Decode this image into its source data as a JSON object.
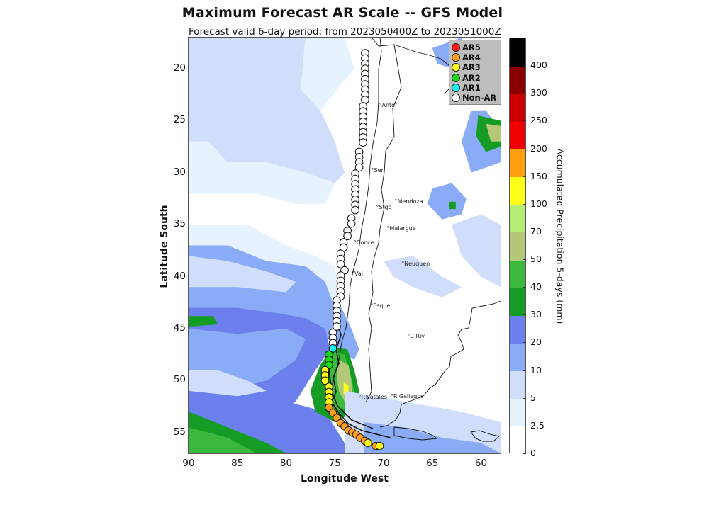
{
  "header": {
    "title": "Maximum Forecast AR Scale -- GFS Model",
    "subtitle": "Forecast valid 6-day period: from 2023050400Z to 2023051000Z"
  },
  "axes": {
    "xlabel": "Longitude West",
    "ylabel": "Latitude South",
    "xticks": [
      "90",
      "85",
      "80",
      "75",
      "70",
      "65",
      "60"
    ],
    "yticks": [
      "20",
      "25",
      "30",
      "35",
      "40",
      "45",
      "50",
      "55"
    ],
    "lon_range": [
      90,
      58
    ],
    "lat_range": [
      17,
      57
    ]
  },
  "legend": {
    "items": [
      {
        "label": "AR5",
        "color": "#ff1a1a"
      },
      {
        "label": "AR4",
        "color": "#ff9f1a"
      },
      {
        "label": "AR3",
        "color": "#ffff1a"
      },
      {
        "label": "AR2",
        "color": "#1ada1a"
      },
      {
        "label": "AR1",
        "color": "#1af2f2"
      },
      {
        "label": "Non-AR",
        "color": "#ffffff"
      }
    ]
  },
  "colorbar": {
    "label": "Accumulated Precipitation 5-days (mm)",
    "ticks": [
      "0",
      "2.5",
      "5",
      "10",
      "20",
      "30",
      "40",
      "50",
      "70",
      "100",
      "150",
      "200",
      "250",
      "300",
      "400"
    ],
    "colors": [
      "#ffffff",
      "#e6f2fd",
      "#d0ddfb",
      "#8aabf5",
      "#6b80ec",
      "#149c25",
      "#3cb83c",
      "#b4c878",
      "#b4ee78",
      "#ffff1a",
      "#ffa010",
      "#ee0000",
      "#cc0000",
      "#880000",
      "#000000"
    ]
  },
  "cities": [
    {
      "name": "Antof",
      "lon": 70.4,
      "lat": 23.6
    },
    {
      "name": "Ser.",
      "lon": 71.2,
      "lat": 29.9
    },
    {
      "name": "Stgo",
      "lon": 70.7,
      "lat": 33.4
    },
    {
      "name": "Mendoza",
      "lon": 68.8,
      "lat": 32.9
    },
    {
      "name": "Malargue",
      "lon": 69.6,
      "lat": 35.5
    },
    {
      "name": "Conce",
      "lon": 73.0,
      "lat": 36.8
    },
    {
      "name": "Neuquen",
      "lon": 68.1,
      "lat": 38.9
    },
    {
      "name": "Val",
      "lon": 73.2,
      "lat": 39.8
    },
    {
      "name": "Esquel",
      "lon": 71.3,
      "lat": 42.9
    },
    {
      "name": "C.Riv.",
      "lon": 67.5,
      "lat": 45.8
    },
    {
      "name": "P.Natales",
      "lon": 72.5,
      "lat": 51.7
    },
    {
      "name": "R.Gallegos",
      "lon": 69.2,
      "lat": 51.6
    }
  ],
  "ar_points": [
    {
      "lon": 71.9,
      "lat": 18.5,
      "ar": 0
    },
    {
      "lon": 71.9,
      "lat": 19.0,
      "ar": 0
    },
    {
      "lon": 71.9,
      "lat": 19.5,
      "ar": 0
    },
    {
      "lon": 71.9,
      "lat": 20.0,
      "ar": 0
    },
    {
      "lon": 71.9,
      "lat": 20.5,
      "ar": 0
    },
    {
      "lon": 71.9,
      "lat": 21.0,
      "ar": 0
    },
    {
      "lon": 71.9,
      "lat": 21.5,
      "ar": 0
    },
    {
      "lon": 71.9,
      "lat": 22.0,
      "ar": 0
    },
    {
      "lon": 71.9,
      "lat": 22.5,
      "ar": 0
    },
    {
      "lon": 71.9,
      "lat": 23.0,
      "ar": 0
    },
    {
      "lon": 72.1,
      "lat": 23.6,
      "ar": 0
    },
    {
      "lon": 72.1,
      "lat": 24.1,
      "ar": 0
    },
    {
      "lon": 72.1,
      "lat": 24.6,
      "ar": 0
    },
    {
      "lon": 72.1,
      "lat": 25.1,
      "ar": 0
    },
    {
      "lon": 72.1,
      "lat": 25.6,
      "ar": 0
    },
    {
      "lon": 72.1,
      "lat": 26.1,
      "ar": 0
    },
    {
      "lon": 72.1,
      "lat": 26.6,
      "ar": 0
    },
    {
      "lon": 72.1,
      "lat": 27.1,
      "ar": 0
    },
    {
      "lon": 72.5,
      "lat": 28.0,
      "ar": 0
    },
    {
      "lon": 72.5,
      "lat": 28.5,
      "ar": 0
    },
    {
      "lon": 72.5,
      "lat": 29.0,
      "ar": 0
    },
    {
      "lon": 72.5,
      "lat": 29.5,
      "ar": 0
    },
    {
      "lon": 72.9,
      "lat": 30.1,
      "ar": 0
    },
    {
      "lon": 72.9,
      "lat": 30.6,
      "ar": 0
    },
    {
      "lon": 72.9,
      "lat": 31.1,
      "ar": 0
    },
    {
      "lon": 72.9,
      "lat": 31.6,
      "ar": 0
    },
    {
      "lon": 72.9,
      "lat": 32.1,
      "ar": 0
    },
    {
      "lon": 72.9,
      "lat": 32.6,
      "ar": 0
    },
    {
      "lon": 72.9,
      "lat": 33.1,
      "ar": 0
    },
    {
      "lon": 72.9,
      "lat": 33.6,
      "ar": 0
    },
    {
      "lon": 73.3,
      "lat": 34.4,
      "ar": 0
    },
    {
      "lon": 73.3,
      "lat": 34.9,
      "ar": 0
    },
    {
      "lon": 73.7,
      "lat": 35.6,
      "ar": 0
    },
    {
      "lon": 73.7,
      "lat": 36.1,
      "ar": 0
    },
    {
      "lon": 74.1,
      "lat": 36.7,
      "ar": 0
    },
    {
      "lon": 74.1,
      "lat": 37.2,
      "ar": 0
    },
    {
      "lon": 74.4,
      "lat": 37.8,
      "ar": 0
    },
    {
      "lon": 74.4,
      "lat": 38.3,
      "ar": 0
    },
    {
      "lon": 74.4,
      "lat": 38.8,
      "ar": 0
    },
    {
      "lon": 74.0,
      "lat": 39.4,
      "ar": 0
    },
    {
      "lon": 74.4,
      "lat": 39.9,
      "ar": 0
    },
    {
      "lon": 74.4,
      "lat": 40.4,
      "ar": 0
    },
    {
      "lon": 74.4,
      "lat": 40.9,
      "ar": 0
    },
    {
      "lon": 74.4,
      "lat": 41.4,
      "ar": 0
    },
    {
      "lon": 74.4,
      "lat": 41.9,
      "ar": 0
    },
    {
      "lon": 74.8,
      "lat": 42.3,
      "ar": 0
    },
    {
      "lon": 74.8,
      "lat": 42.8,
      "ar": 0
    },
    {
      "lon": 74.8,
      "lat": 43.3,
      "ar": 0
    },
    {
      "lon": 74.8,
      "lat": 43.8,
      "ar": 0
    },
    {
      "lon": 74.8,
      "lat": 44.3,
      "ar": 0
    },
    {
      "lon": 74.8,
      "lat": 44.8,
      "ar": 0
    },
    {
      "lon": 75.2,
      "lat": 45.4,
      "ar": 0
    },
    {
      "lon": 75.2,
      "lat": 45.9,
      "ar": 0
    },
    {
      "lon": 75.2,
      "lat": 46.4,
      "ar": 0
    },
    {
      "lon": 75.2,
      "lat": 46.9,
      "ar": 1
    },
    {
      "lon": 75.6,
      "lat": 47.5,
      "ar": 2
    },
    {
      "lon": 75.6,
      "lat": 48.0,
      "ar": 2
    },
    {
      "lon": 75.6,
      "lat": 48.5,
      "ar": 2
    },
    {
      "lon": 76.0,
      "lat": 49.0,
      "ar": 3
    },
    {
      "lon": 76.0,
      "lat": 49.5,
      "ar": 3
    },
    {
      "lon": 76.0,
      "lat": 50.0,
      "ar": 3
    },
    {
      "lon": 75.6,
      "lat": 50.6,
      "ar": 3
    },
    {
      "lon": 75.6,
      "lat": 51.1,
      "ar": 3
    },
    {
      "lon": 75.6,
      "lat": 51.6,
      "ar": 3
    },
    {
      "lon": 75.6,
      "lat": 52.1,
      "ar": 3
    },
    {
      "lon": 75.6,
      "lat": 52.6,
      "ar": 4
    },
    {
      "lon": 75.2,
      "lat": 53.1,
      "ar": 4
    },
    {
      "lon": 74.8,
      "lat": 53.6,
      "ar": 4
    },
    {
      "lon": 74.4,
      "lat": 54.1,
      "ar": 4
    },
    {
      "lon": 74.0,
      "lat": 54.4,
      "ar": 4
    },
    {
      "lon": 73.6,
      "lat": 54.8,
      "ar": 4
    },
    {
      "lon": 73.2,
      "lat": 55.0,
      "ar": 4
    },
    {
      "lon": 72.8,
      "lat": 55.2,
      "ar": 4
    },
    {
      "lon": 72.4,
      "lat": 55.5,
      "ar": 4
    },
    {
      "lon": 71.9,
      "lat": 55.8,
      "ar": 4
    },
    {
      "lon": 71.6,
      "lat": 56.0,
      "ar": 3
    },
    {
      "lon": 70.8,
      "lat": 56.3,
      "ar": 4
    },
    {
      "lon": 70.4,
      "lat": 56.3,
      "ar": 3
    }
  ],
  "precip_regions": [
    {
      "level": 2,
      "points": [
        [
          90,
          17
        ],
        [
          78,
          17
        ],
        [
          78.5,
          22
        ],
        [
          76.5,
          24
        ],
        [
          75,
          27
        ],
        [
          74,
          30
        ],
        [
          75,
          31
        ],
        [
          78,
          30
        ],
        [
          82,
          29
        ],
        [
          86,
          29
        ],
        [
          88,
          27
        ],
        [
          90,
          27
        ]
      ]
    },
    {
      "level": 1,
      "points": [
        [
          90,
          27
        ],
        [
          88,
          27
        ],
        [
          86,
          29
        ],
        [
          82,
          29
        ],
        [
          78,
          30
        ],
        [
          75,
          31
        ],
        [
          76,
          33
        ],
        [
          79,
          33
        ],
        [
          83,
          32
        ],
        [
          88,
          32
        ],
        [
          90,
          32
        ]
      ]
    },
    {
      "level": 1,
      "points": [
        [
          78,
          17
        ],
        [
          74,
          17
        ],
        [
          73,
          20
        ],
        [
          76.5,
          24
        ],
        [
          78.5,
          22
        ]
      ]
    },
    {
      "level": 1,
      "points": [
        [
          90,
          35
        ],
        [
          84,
          35
        ],
        [
          80,
          37
        ],
        [
          77,
          38
        ],
        [
          75,
          39
        ],
        [
          74.6,
          42
        ],
        [
          75,
          45
        ],
        [
          90,
          45
        ]
      ]
    },
    {
      "level": 3,
      "points": [
        [
          90,
          37
        ],
        [
          86,
          37
        ],
        [
          82,
          38.5
        ],
        [
          78,
          39
        ],
        [
          76,
          40.5
        ],
        [
          75,
          43
        ],
        [
          75.5,
          46
        ],
        [
          90,
          46
        ]
      ]
    },
    {
      "level": 2,
      "points": [
        [
          90,
          38
        ],
        [
          86,
          38.5
        ],
        [
          82,
          39.5
        ],
        [
          79,
          40.5
        ],
        [
          80,
          41.5
        ],
        [
          85,
          41
        ],
        [
          90,
          41
        ]
      ]
    },
    {
      "level": 4,
      "points": [
        [
          90,
          43
        ],
        [
          85,
          43
        ],
        [
          81,
          43.5
        ],
        [
          78,
          44
        ],
        [
          76,
          45
        ],
        [
          75.5,
          47
        ],
        [
          77,
          49
        ],
        [
          79,
          52
        ],
        [
          82,
          54
        ],
        [
          86,
          55
        ],
        [
          90,
          55
        ]
      ]
    },
    {
      "level": 3,
      "points": [
        [
          90,
          45
        ],
        [
          85,
          45.5
        ],
        [
          80,
          45
        ],
        [
          78,
          46
        ],
        [
          79,
          48
        ],
        [
          82,
          50
        ],
        [
          86,
          51
        ],
        [
          90,
          51
        ]
      ]
    },
    {
      "level": 2,
      "points": [
        [
          90,
          49
        ],
        [
          87,
          49
        ],
        [
          84,
          50
        ],
        [
          82,
          51
        ],
        [
          85,
          51.5
        ],
        [
          90,
          51
        ]
      ]
    },
    {
      "level": 4,
      "points": [
        [
          90,
          52
        ],
        [
          80,
          52
        ],
        [
          76,
          53
        ],
        [
          74,
          56
        ],
        [
          72,
          57
        ],
        [
          90,
          57
        ]
      ]
    },
    {
      "level": 5,
      "points": [
        [
          90,
          53
        ],
        [
          86,
          54.5
        ],
        [
          82,
          56
        ],
        [
          80,
          57
        ],
        [
          90,
          57
        ]
      ]
    },
    {
      "level": 6,
      "points": [
        [
          90,
          54.5
        ],
        [
          86,
          55.5
        ],
        [
          83,
          57
        ],
        [
          90,
          57
        ]
      ]
    },
    {
      "level": 5,
      "points": [
        [
          76,
          52
        ],
        [
          74,
          54
        ],
        [
          72.5,
          55.5
        ],
        [
          71,
          57
        ],
        [
          69.7,
          57
        ],
        [
          70,
          56
        ],
        [
          72,
          55
        ],
        [
          74,
          54
        ]
      ]
    },
    {
      "level": 5,
      "points": [
        [
          90,
          43.8
        ],
        [
          87.5,
          43.8
        ],
        [
          87,
          44.6
        ],
        [
          90,
          44.8
        ]
      ]
    },
    {
      "level": 3,
      "points": [
        [
          75.6,
          43
        ],
        [
          74.3,
          43
        ],
        [
          73.3,
          45
        ],
        [
          72.5,
          47
        ],
        [
          73,
          48
        ],
        [
          75.5,
          47
        ]
      ]
    },
    {
      "level": 5,
      "points": [
        [
          76.5,
          48.5
        ],
        [
          75.2,
          46.8
        ],
        [
          73.7,
          47
        ],
        [
          73,
          49
        ],
        [
          72.5,
          51
        ],
        [
          73,
          53
        ],
        [
          75,
          54
        ],
        [
          77,
          53
        ],
        [
          77.5,
          51
        ]
      ]
    },
    {
      "level": 6,
      "points": [
        [
          75.3,
          47.2
        ],
        [
          74,
          47.5
        ],
        [
          73.5,
          49
        ],
        [
          73,
          51
        ],
        [
          73.5,
          52.5
        ],
        [
          75,
          53
        ],
        [
          75.3,
          51
        ],
        [
          75.5,
          49
        ]
      ]
    },
    {
      "level": 7,
      "points": [
        [
          74.6,
          48
        ],
        [
          73.6,
          48.5
        ],
        [
          73.3,
          50
        ],
        [
          73.2,
          51.5
        ],
        [
          74,
          52
        ],
        [
          74.6,
          51
        ],
        [
          74.8,
          49.5
        ]
      ]
    },
    {
      "level": 9,
      "points": [
        [
          74.1,
          50.2
        ],
        [
          73.6,
          50.5
        ],
        [
          73.6,
          51.2
        ],
        [
          74.1,
          51.3
        ]
      ]
    },
    {
      "level": 3,
      "points": [
        [
          65,
          18
        ],
        [
          62,
          17
        ],
        [
          61,
          19
        ],
        [
          63,
          20
        ],
        [
          64.5,
          19.5
        ]
      ]
    },
    {
      "level": 3,
      "points": [
        [
          61,
          24
        ],
        [
          59.5,
          24
        ],
        [
          58,
          26
        ],
        [
          58,
          29
        ],
        [
          61,
          30
        ],
        [
          62,
          27
        ]
      ]
    },
    {
      "level": 5,
      "points": [
        [
          60.3,
          24.5
        ],
        [
          58,
          25
        ],
        [
          58,
          27.5
        ],
        [
          59.5,
          28
        ],
        [
          60.5,
          26.5
        ]
      ]
    },
    {
      "level": 7,
      "points": [
        [
          59.5,
          25.3
        ],
        [
          58,
          25.5
        ],
        [
          58,
          27
        ],
        [
          59,
          27
        ]
      ]
    },
    {
      "level": 3,
      "points": [
        [
          65,
          31.5
        ],
        [
          63,
          31
        ],
        [
          61.5,
          32.5
        ],
        [
          62,
          34
        ],
        [
          64,
          34.5
        ],
        [
          65.5,
          33
        ]
      ]
    },
    {
      "level": 5,
      "points": [
        [
          63.3,
          32.8
        ],
        [
          62.6,
          32.8
        ],
        [
          62.6,
          33.5
        ],
        [
          63.3,
          33.5
        ]
      ]
    },
    {
      "level": 2,
      "points": [
        [
          63,
          35
        ],
        [
          60,
          34
        ],
        [
          58,
          35
        ],
        [
          58,
          41
        ],
        [
          60,
          40
        ],
        [
          62,
          38
        ]
      ]
    },
    {
      "level": 2,
      "points": [
        [
          70,
          38.5
        ],
        [
          67,
          38
        ],
        [
          64,
          40
        ],
        [
          62,
          41
        ],
        [
          64,
          42
        ],
        [
          67,
          41
        ],
        [
          69,
          40
        ]
      ]
    },
    {
      "level": 2,
      "points": [
        [
          74,
          51
        ],
        [
          68,
          52
        ],
        [
          62,
          53
        ],
        [
          58,
          54
        ],
        [
          58,
          57
        ],
        [
          74,
          57
        ]
      ]
    },
    {
      "level": 3,
      "points": [
        [
          72,
          54
        ],
        [
          68,
          54.5
        ],
        [
          64,
          55.5
        ],
        [
          60,
          56
        ],
        [
          58,
          57
        ],
        [
          72,
          57
        ]
      ]
    }
  ]
}
